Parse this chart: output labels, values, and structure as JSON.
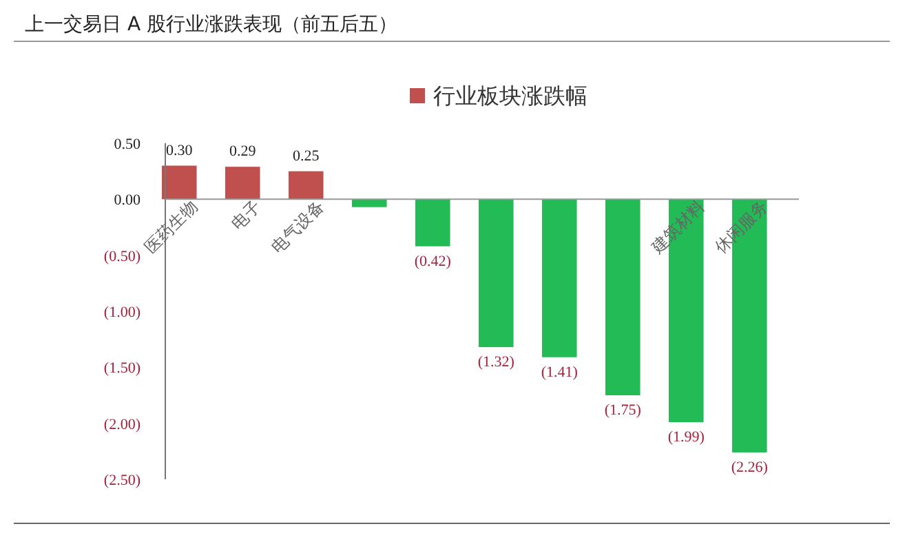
{
  "chart_data": {
    "type": "bar",
    "title": "上一交易日 A 股行业涨跌表现（前五后五）",
    "categories": [
      "医药生物",
      "电子",
      "电气设备",
      null,
      null,
      null,
      null,
      null,
      "建筑材料",
      "休闲服务"
    ],
    "series": [
      {
        "name": "行业板块涨跌幅",
        "color": "#c0504d",
        "colors": [
          "#c0504d",
          "#c0504d",
          "#c0504d",
          "#22bb55",
          "#22bb55",
          "#22bb55",
          "#22bb55",
          "#22bb55",
          "#22bb55",
          "#22bb55"
        ],
        "values": [
          0.3,
          0.29,
          0.25,
          -0.07,
          -0.42,
          -1.32,
          -1.41,
          -1.75,
          -1.99,
          -2.26
        ],
        "value_labels": [
          "0.30",
          "0.29",
          "0.25",
          null,
          "(0.42)",
          "(1.32)",
          "(1.41)",
          "(1.75)",
          "(1.99)",
          "(2.26)"
        ]
      }
    ],
    "ylim": [
      -2.5,
      0.5
    ],
    "yticks": [
      {
        "value": 0.5,
        "label": "0.50"
      },
      {
        "value": 0,
        "label": "0.00"
      },
      {
        "value": -0.5,
        "label": "(0.50)"
      },
      {
        "value": -1,
        "label": "(1.00)"
      },
      {
        "value": -1.5,
        "label": "(1.50)"
      },
      {
        "value": -2,
        "label": "(2.00)"
      },
      {
        "value": -2.5,
        "label": "(2.50)"
      }
    ],
    "legend": "top",
    "grid": false
  }
}
